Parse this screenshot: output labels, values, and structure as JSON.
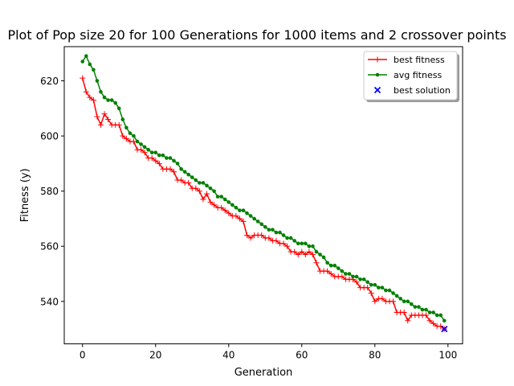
{
  "colors": {
    "best_fitness": "#ff0000",
    "avg_fitness": "#008000",
    "best_solution": "#0000ff"
  },
  "chart_data": {
    "type": "line",
    "title": "Plot of Pop size 20 for 100 Generations for 1000 items and 2 crossover points",
    "xlabel": "Generation",
    "ylabel": "Fitness (y)",
    "xlim": [
      -5,
      104
    ],
    "ylim": [
      524.6,
      632.4
    ],
    "xticks": [
      0,
      20,
      40,
      60,
      80,
      100
    ],
    "yticks": [
      540,
      560,
      580,
      600,
      620
    ],
    "grid": false,
    "legend_position": "top-right",
    "series": [
      {
        "name": "best fitness",
        "color": "#ff0000",
        "marker": "plus",
        "values": [
          621,
          616,
          614,
          613,
          607,
          604,
          608,
          606,
          604,
          604,
          604,
          600,
          599,
          598,
          598,
          595,
          595,
          594,
          592,
          592,
          591,
          590,
          588,
          588,
          588,
          587,
          584,
          584,
          583,
          583,
          581,
          581,
          580,
          577,
          579,
          576,
          575,
          574,
          574,
          573,
          572,
          571,
          571,
          570,
          569,
          564,
          563,
          564,
          564,
          564,
          563,
          563,
          562,
          562,
          561,
          561,
          560,
          558,
          558,
          557,
          558,
          557,
          558,
          557,
          554,
          551,
          551,
          551,
          550,
          549,
          549,
          549,
          548,
          548,
          548,
          547,
          545,
          545,
          545,
          543,
          540,
          541,
          541,
          540,
          540,
          540,
          536,
          536,
          536,
          533,
          535,
          535,
          535,
          535,
          535,
          533,
          532,
          531,
          531,
          530
        ]
      },
      {
        "name": "avg fitness",
        "color": "#008000",
        "marker": "dot",
        "values": [
          627,
          629,
          626,
          624,
          620,
          616,
          614,
          613,
          613,
          612,
          610,
          606,
          603,
          601,
          600,
          598,
          597,
          596,
          595,
          594,
          594,
          593,
          593,
          592,
          592,
          591,
          590,
          588,
          587,
          586,
          585,
          584,
          583,
          583,
          582,
          581,
          580,
          578,
          578,
          577,
          576,
          575,
          574,
          573,
          573,
          572,
          571,
          570,
          569,
          568,
          567,
          566,
          566,
          565,
          565,
          564,
          563,
          563,
          562,
          561,
          561,
          561,
          560,
          560,
          558,
          557,
          556,
          554,
          553,
          553,
          552,
          551,
          550,
          550,
          549,
          549,
          548,
          548,
          547,
          546,
          546,
          545,
          545,
          544,
          544,
          543,
          542,
          541,
          540,
          540,
          539,
          538,
          538,
          537,
          537,
          536,
          536,
          535,
          535,
          533
        ]
      },
      {
        "name": "best solution",
        "color": "#0000ff",
        "marker": "x",
        "type": "scatter",
        "points": [
          [
            99,
            530
          ]
        ]
      }
    ]
  }
}
